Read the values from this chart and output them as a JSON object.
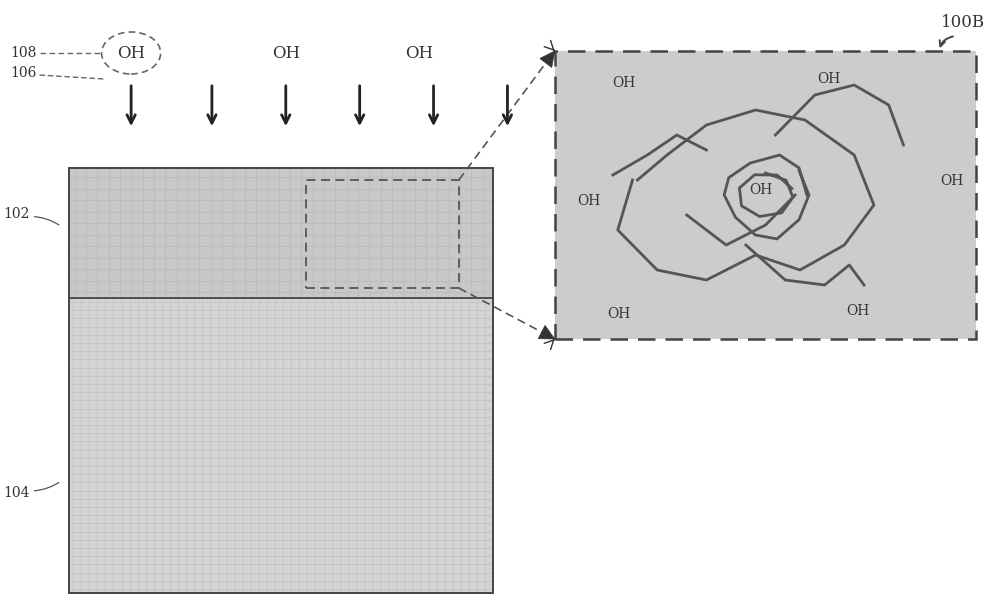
{
  "bg_color": "#ffffff",
  "label_100B": "100B",
  "label_108": "108",
  "label_106": "106",
  "label_102": "102",
  "label_104": "104",
  "label_OH": "OH",
  "arrow_color": "#222222",
  "dashed_color": "#444444",
  "polymer_color": "#555555",
  "poly_fill": "#c8c8c8",
  "sub_fill": "#d4d4d4",
  "zoom_fill": "#cccccc",
  "grid_color_poly": "#b8b8b8",
  "grid_color_sub": "#bbbbbb"
}
